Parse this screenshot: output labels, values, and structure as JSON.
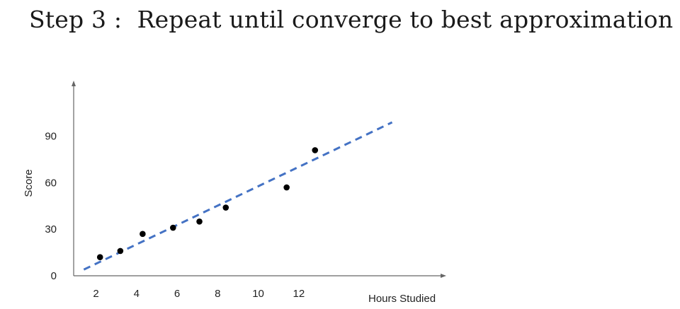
{
  "slide": {
    "title": "Step 3 :  Repeat until converge to best approximation"
  },
  "chart_data": {
    "type": "scatter",
    "title": "",
    "xlabel": "Hours Studied",
    "ylabel": "Score",
    "xlim": [
      0.9,
      19.2
    ],
    "ylim": [
      0,
      125
    ],
    "x_ticks": [
      2,
      4,
      6,
      8,
      10,
      12
    ],
    "y_ticks": [
      0,
      30,
      60,
      90
    ],
    "grid": false,
    "series": [
      {
        "points": [
          {
            "x": 2.2,
            "y": 12
          },
          {
            "x": 3.2,
            "y": 16
          },
          {
            "x": 4.3,
            "y": 27
          },
          {
            "x": 5.8,
            "y": 31
          },
          {
            "x": 7.1,
            "y": 35
          },
          {
            "x": 8.4,
            "y": 44
          },
          {
            "x": 11.4,
            "y": 57
          },
          {
            "x": 12.8,
            "y": 81
          }
        ]
      }
    ],
    "fit_line": {
      "x": [
        1.4,
        16.6
      ],
      "y": [
        4,
        99
      ],
      "style": "dashed",
      "color": "#4472C4"
    },
    "colors": {
      "points": "#000000",
      "axis": "#666666",
      "fit": "#4472C4"
    }
  }
}
